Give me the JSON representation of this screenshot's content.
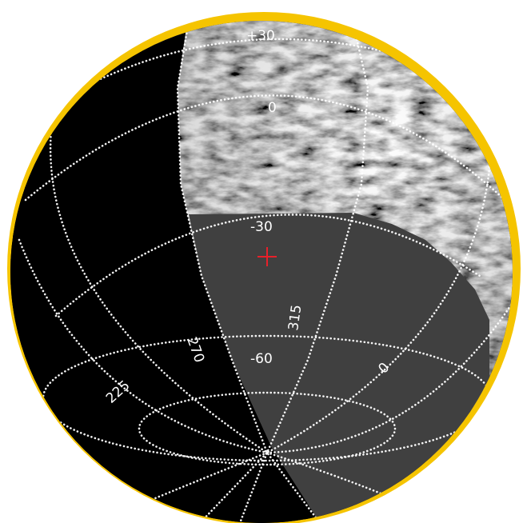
{
  "map": {
    "latitude_labels": [
      {
        "key": "lat-plus30",
        "text": "+30"
      },
      {
        "key": "lat-0",
        "text": "0"
      },
      {
        "key": "lat-minus30",
        "text": "-30"
      },
      {
        "key": "lat-minus60",
        "text": "-60"
      }
    ],
    "longitude_labels": [
      {
        "key": "lon-225",
        "text": "225"
      },
      {
        "key": "lon-270",
        "text": "270"
      },
      {
        "key": "lon-315",
        "text": "315"
      },
      {
        "key": "lon-0",
        "text": "0"
      }
    ],
    "center_marker": {
      "symbol": "+",
      "color": "#e8202a"
    },
    "colors": {
      "night_side": "#000000",
      "masked_region": "#404040",
      "limb_highlight": "#f5c400",
      "grid": "#ffffff",
      "background": "#ffffff"
    }
  }
}
